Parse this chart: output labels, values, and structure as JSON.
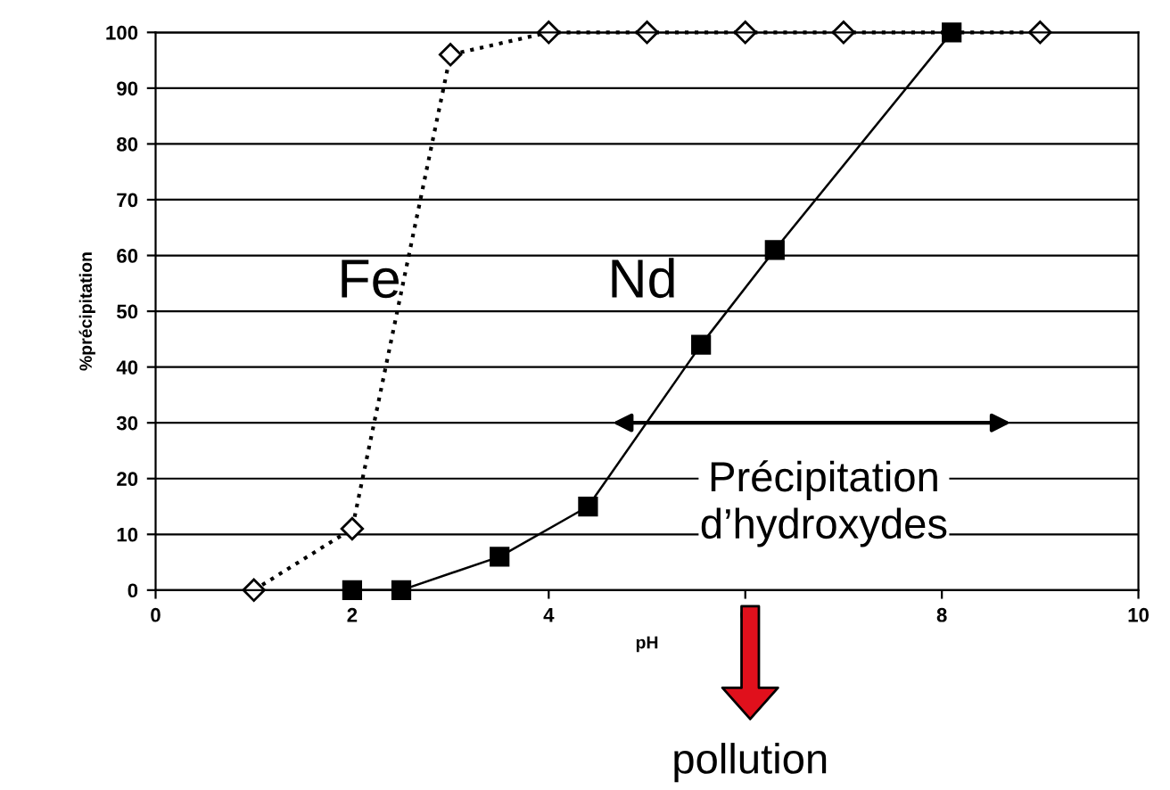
{
  "chart_data": {
    "type": "line",
    "xlabel": "pH",
    "ylabel": "%précipitation",
    "xlim": [
      0,
      10
    ],
    "ylim": [
      0,
      100
    ],
    "xticks": [
      0,
      2,
      4,
      6,
      8,
      10
    ],
    "yticks": [
      0,
      10,
      20,
      30,
      40,
      50,
      60,
      70,
      80,
      90,
      100
    ],
    "grid": "y",
    "series": [
      {
        "name": "Fe",
        "color": "#000000",
        "marker": "diamond",
        "line_style": "dotted",
        "x": [
          1,
          2,
          3,
          4,
          5,
          6,
          7,
          9
        ],
        "values": [
          0,
          11,
          96,
          100,
          100,
          100,
          100,
          100
        ]
      },
      {
        "name": "Nd",
        "color": "#000000",
        "marker": "square",
        "line_style": "solid",
        "x": [
          2,
          2.5,
          3.5,
          4.4,
          5.55,
          6.3,
          8.1
        ],
        "values": [
          0,
          0,
          6,
          15,
          44,
          61,
          100
        ]
      }
    ],
    "annotations": [
      "Précipitation\nd’hydroxydes",
      "pollution"
    ]
  }
}
